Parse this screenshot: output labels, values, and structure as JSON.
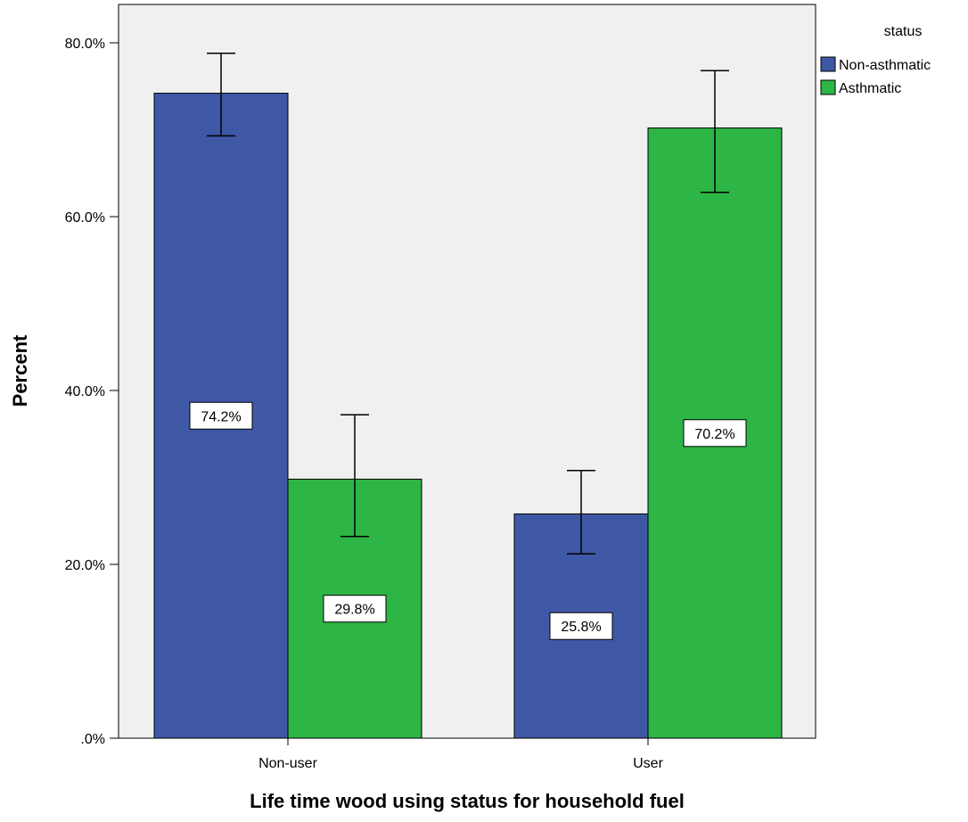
{
  "chart_data": {
    "type": "bar",
    "title": "",
    "xlabel": "Life time wood using status for household fuel",
    "ylabel": "Percent",
    "categories": [
      "Non-user",
      "User"
    ],
    "ylim": [
      0,
      80
    ],
    "yticks": [
      0,
      20,
      40,
      60,
      80
    ],
    "ytick_labels": [
      ".0%",
      "20.0%",
      "40.0%",
      "60.0%",
      "80.0%"
    ],
    "legend_title": "status",
    "legend_position": "top-right",
    "grid": false,
    "series": [
      {
        "name": "Non-asthmatic",
        "color": "#3f58a6",
        "values": [
          74.2,
          25.8
        ],
        "labels": [
          "74.2%",
          "25.8%"
        ],
        "error_low": [
          69.3,
          21.2
        ],
        "error_high": [
          78.8,
          30.8
        ]
      },
      {
        "name": "Asthmatic",
        "color": "#2db545",
        "values": [
          29.8,
          70.2
        ],
        "labels": [
          "29.8%",
          "70.2%"
        ],
        "error_low": [
          23.2,
          62.8
        ],
        "error_high": [
          37.2,
          76.8
        ]
      }
    ]
  },
  "colors": {
    "plot_background": "#f0f0f0"
  }
}
